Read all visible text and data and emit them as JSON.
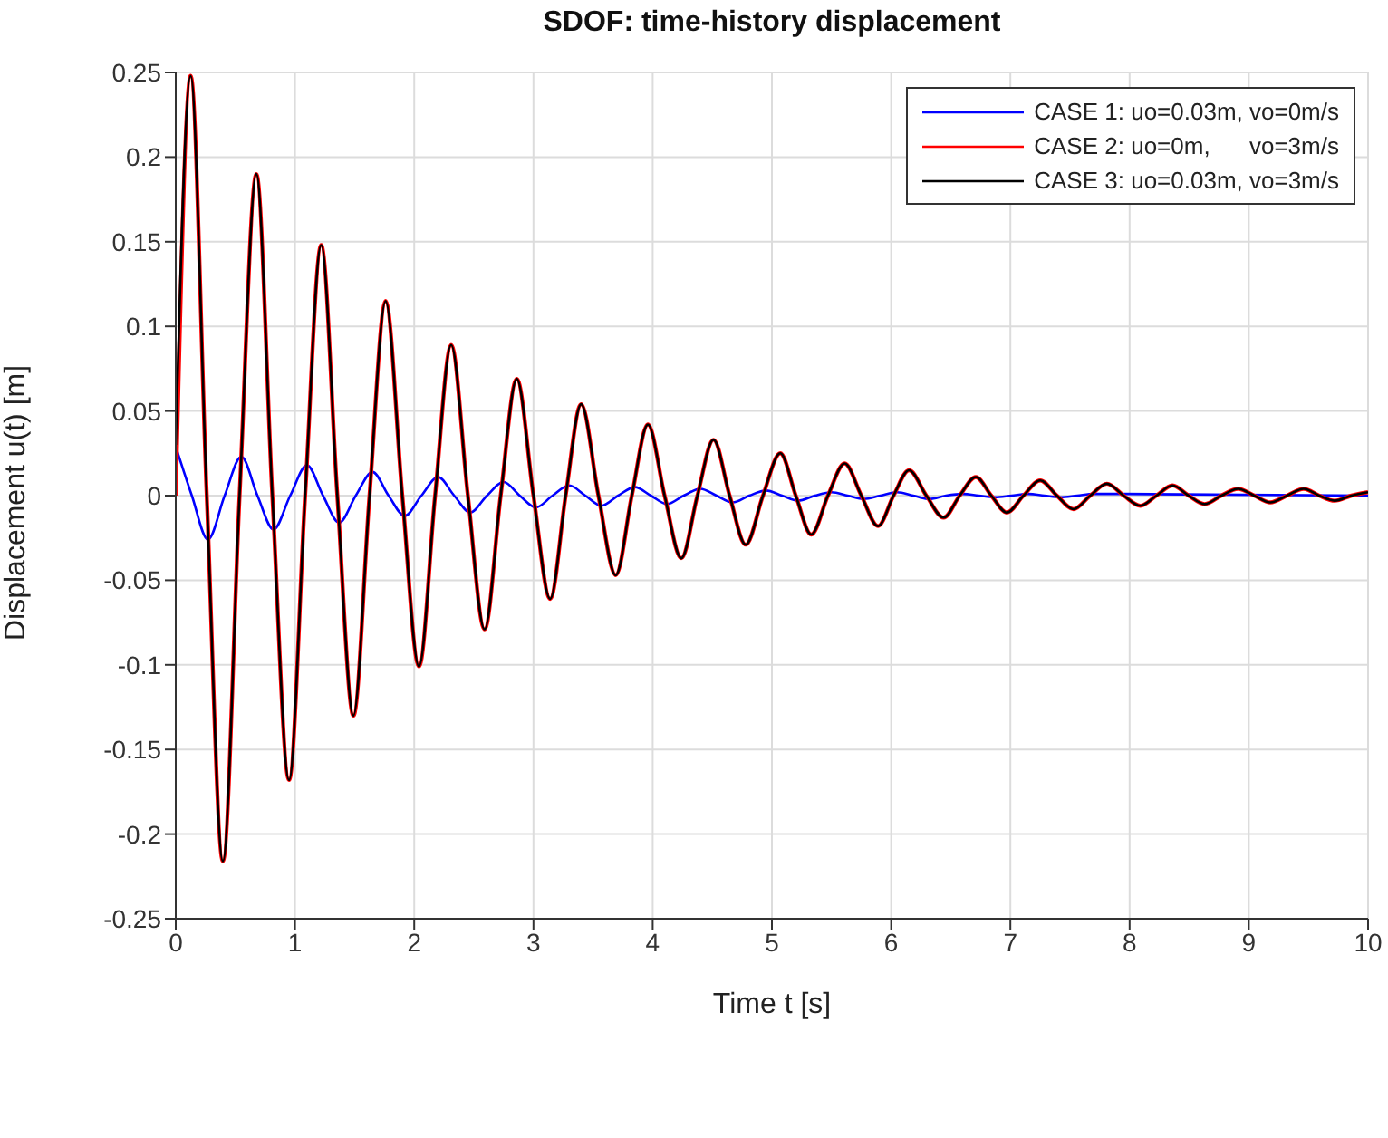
{
  "chart_data": {
    "type": "line",
    "title": "SDOF: time-history displacement",
    "xlabel": "Time t [s]",
    "ylabel": "Displacement u(t) [m]",
    "xlim": [
      0,
      10
    ],
    "xticks": [
      0,
      1,
      2,
      3,
      4,
      5,
      6,
      7,
      8,
      9,
      10
    ],
    "ylim": [
      -0.25,
      0.25
    ],
    "yticks": [
      -0.25,
      -0.2,
      -0.15,
      -0.1,
      -0.05,
      0,
      0.05,
      0.1,
      0.15,
      0.2,
      0.25
    ],
    "grid": true,
    "legend": "top right",
    "line_style": "solid",
    "marker": "none",
    "series": [
      {
        "name": "CASE 1: uo=0.03m, vo=0m/s",
        "color": "#0000ff",
        "x": [
          0,
          0.135,
          0.27,
          0.41,
          0.55,
          0.685,
          0.82,
          0.96,
          1.1,
          1.235,
          1.37,
          1.51,
          1.65,
          1.785,
          1.92,
          2.06,
          2.2,
          2.335,
          2.47,
          2.61,
          2.75,
          2.885,
          3.02,
          3.16,
          3.3,
          3.435,
          3.57,
          3.71,
          3.85,
          3.985,
          4.12,
          4.26,
          4.4,
          4.535,
          4.67,
          4.81,
          4.95,
          5.085,
          5.22,
          5.36,
          5.5,
          5.635,
          5.77,
          5.91,
          6.05,
          6.185,
          6.32,
          6.46,
          6.6,
          6.735,
          6.87,
          7.01,
          7.15,
          7.285,
          7.42,
          7.56,
          7.7,
          10
        ],
        "values": [
          0.029,
          0,
          -0.026,
          0,
          0.023,
          0,
          -0.02,
          0,
          0.018,
          0,
          -0.016,
          0,
          0.014,
          0,
          -0.012,
          0,
          0.011,
          0,
          -0.01,
          0,
          0.008,
          0,
          -0.007,
          0,
          0.006,
          0,
          -0.006,
          0,
          0.005,
          0,
          -0.005,
          0,
          0.004,
          0,
          -0.004,
          0,
          0.003,
          0,
          -0.003,
          0,
          0.002,
          0,
          -0.002,
          0,
          0.002,
          0,
          -0.002,
          0,
          0.001,
          0,
          -0.001,
          0,
          0.001,
          0,
          -0.001,
          0,
          0.001,
          0
        ]
      },
      {
        "name": "CASE 2: uo=0m,      vo=3m/s",
        "color": "#ff0000",
        "x": [
          0,
          0.125,
          0.26,
          0.395,
          0.535,
          0.676,
          0.81,
          0.95,
          1.085,
          1.22,
          1.355,
          1.49,
          1.625,
          1.76,
          1.9,
          2.04,
          2.175,
          2.31,
          2.45,
          2.59,
          2.725,
          2.86,
          3.0,
          3.14,
          3.27,
          3.4,
          3.545,
          3.69,
          3.825,
          3.96,
          4.1,
          4.24,
          4.375,
          4.51,
          4.645,
          4.78,
          4.925,
          5.07,
          5.2,
          5.33,
          5.47,
          5.61,
          5.75,
          5.89,
          6.02,
          6.15,
          6.295,
          6.44,
          6.575,
          6.71,
          6.84,
          6.97,
          7.11,
          7.25,
          7.39,
          7.53,
          7.67,
          7.81,
          7.95,
          8.09,
          8.225,
          8.36,
          8.495,
          8.63,
          8.77,
          8.91,
          9.045,
          9.18,
          9.32,
          9.46,
          9.59,
          9.72,
          9.86,
          10
        ],
        "values": [
          0,
          0.248,
          0,
          -0.216,
          0,
          0.19,
          0,
          -0.168,
          0,
          0.148,
          0,
          -0.13,
          0,
          0.115,
          0,
          -0.101,
          0,
          0.089,
          0,
          -0.079,
          0,
          0.069,
          0,
          -0.061,
          0,
          0.054,
          0,
          -0.047,
          0,
          0.042,
          0,
          -0.037,
          0,
          0.033,
          0,
          -0.029,
          0,
          0.025,
          0,
          -0.023,
          0,
          0.019,
          0,
          -0.018,
          0,
          0.015,
          0,
          -0.013,
          0,
          0.011,
          0,
          -0.01,
          0,
          0.009,
          0,
          -0.008,
          0,
          0.007,
          0,
          -0.006,
          0,
          0.006,
          0,
          -0.005,
          0,
          0.004,
          0,
          -0.004,
          0,
          0.004,
          0,
          -0.003,
          0,
          0.002
        ]
      },
      {
        "name": "CASE 3: uo=0.03m, vo=3m/s",
        "color": "#000000",
        "x": [
          0,
          0.125,
          0.26,
          0.395,
          0.535,
          0.676,
          0.81,
          0.95,
          1.085,
          1.22,
          1.355,
          1.49,
          1.625,
          1.76,
          1.9,
          2.04,
          2.175,
          2.31,
          2.45,
          2.59,
          2.725,
          2.86,
          3.0,
          3.14,
          3.27,
          3.4,
          3.545,
          3.69,
          3.825,
          3.96,
          4.1,
          4.24,
          4.375,
          4.51,
          4.645,
          4.78,
          4.925,
          5.07,
          5.2,
          5.33,
          5.47,
          5.61,
          5.75,
          5.89,
          6.02,
          6.15,
          6.295,
          6.44,
          6.575,
          6.71,
          6.84,
          6.97,
          7.11,
          7.25,
          7.39,
          7.53,
          7.67,
          7.81,
          7.95,
          8.09,
          8.225,
          8.36,
          8.495,
          8.63,
          8.77,
          8.91,
          9.045,
          9.18,
          9.32,
          9.46,
          9.59,
          9.72,
          9.86,
          10
        ],
        "values": [
          0.03,
          0.248,
          0,
          -0.216,
          0,
          0.19,
          0,
          -0.168,
          0,
          0.148,
          0,
          -0.13,
          0,
          0.115,
          0,
          -0.101,
          0,
          0.089,
          0,
          -0.079,
          0,
          0.069,
          0,
          -0.061,
          0,
          0.054,
          0,
          -0.047,
          0,
          0.042,
          0,
          -0.037,
          0,
          0.033,
          0,
          -0.029,
          0,
          0.025,
          0,
          -0.023,
          0,
          0.019,
          0,
          -0.018,
          0,
          0.015,
          0,
          -0.013,
          0,
          0.011,
          0,
          -0.01,
          0,
          0.009,
          0,
          -0.008,
          0,
          0.007,
          0,
          -0.006,
          0,
          0.006,
          0,
          -0.005,
          0,
          0.004,
          0,
          -0.004,
          0,
          0.004,
          0,
          -0.003,
          0,
          0.002
        ]
      }
    ]
  }
}
